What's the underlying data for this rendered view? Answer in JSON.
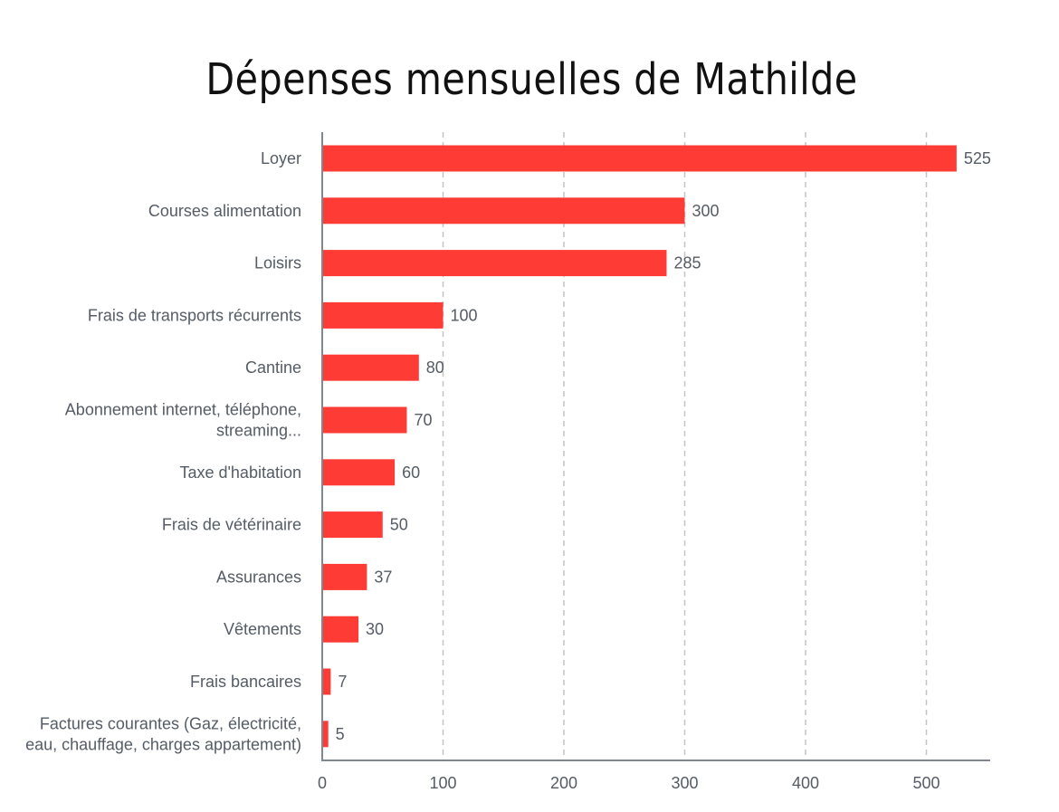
{
  "chart_data": {
    "type": "bar",
    "orientation": "horizontal",
    "title": "Dépenses mensuelles de Mathilde",
    "xlabel": "",
    "ylabel": "",
    "xlim": [
      0,
      550
    ],
    "ticks": [
      "0",
      "100",
      "200",
      "300",
      "400",
      "500"
    ],
    "tick_values": [
      0,
      100,
      200,
      300,
      400,
      500
    ],
    "grid": "vertical dashed",
    "bar_color": "#ff3b36",
    "categories": [
      [
        "Loyer"
      ],
      [
        "Courses alimentation"
      ],
      [
        "Loisirs"
      ],
      [
        "Frais de transports récurrents"
      ],
      [
        "Cantine"
      ],
      [
        "Abonnement internet, téléphone,",
        "streaming..."
      ],
      [
        "Taxe d'habitation"
      ],
      [
        "Frais de vétérinaire"
      ],
      [
        "Assurances"
      ],
      [
        "Vêtements"
      ],
      [
        "Frais bancaires"
      ],
      [
        "Factures courantes (Gaz, électricité,",
        "eau, chauffage, charges appartement)"
      ]
    ],
    "values": [
      525,
      300,
      285,
      100,
      80,
      70,
      60,
      50,
      37,
      30,
      7,
      5
    ]
  }
}
